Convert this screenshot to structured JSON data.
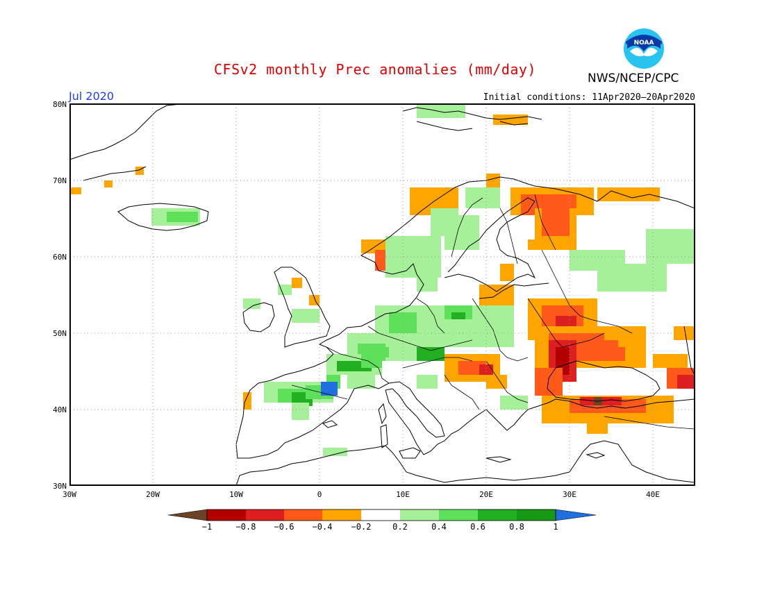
{
  "title": "CFSv2 monthly Prec anomalies (mm/day)",
  "agency": "NWS/NCEP/CPC",
  "logo_text": "NOAA",
  "valid_month": "Jul 2020",
  "initial_conditions": "Initial conditions: 11Apr2020–20Apr2020",
  "map": {
    "region": "Europe",
    "lon_range": [
      -30,
      45
    ],
    "lat_range": [
      30,
      80
    ],
    "lat_ticks": [
      "30N",
      "40N",
      "50N",
      "60N",
      "70N",
      "80N"
    ],
    "lon_ticks": [
      "30W",
      "20W",
      "10W",
      "0",
      "10E",
      "20E",
      "30E",
      "40E"
    ],
    "grid": "dotted"
  },
  "colorbar": {
    "labels": [
      "−1",
      "−0.8",
      "−0.6",
      "−0.4",
      "−0.2",
      "0.2",
      "0.4",
      "0.6",
      "0.8",
      "1"
    ],
    "colors": [
      "#6b4226",
      "#b30000",
      "#dd1f1f",
      "#ff5a1a",
      "#ffa500",
      "#ffffff",
      "#a6f09a",
      "#5fe05a",
      "#22b022",
      "#169a16",
      "#1f6fe0"
    ]
  },
  "anomaly_colors": {
    "lt_-1": "#6b4226",
    "-1_-0.8": "#b30000",
    "-0.8_-0.6": "#dd1f1f",
    "-0.6_-0.4": "#ff5a1a",
    "-0.4_-0.2": "#ffa500",
    "0.2_0.4": "#a6f09a",
    "0.4_0.6": "#5fe05a",
    "0.6_0.8": "#22b022",
    "0.8_1": "#169a16",
    "gt_1": "#1f6fe0"
  }
}
